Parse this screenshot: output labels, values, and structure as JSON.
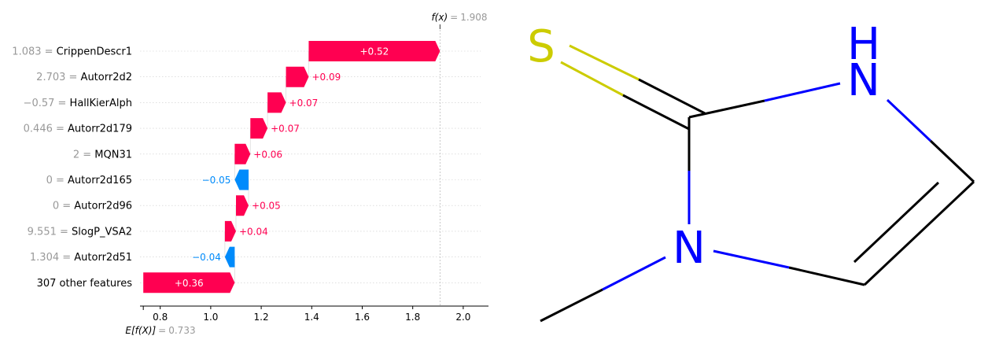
{
  "chart_data": {
    "type": "waterfall",
    "fx_label": "f(x)",
    "fx_value": "1.908",
    "base_label": "E[f(X)]",
    "base_value": "0.733",
    "xlim": [
      0.72,
      2.1
    ],
    "xticks": [
      "0.8",
      "1.0",
      "1.2",
      "1.4",
      "1.6",
      "1.8",
      "2.0"
    ],
    "colors": {
      "positive": "#ff0051",
      "negative": "#008bfb"
    },
    "features": [
      {
        "value": "1.083",
        "name": "CrippenDescr1",
        "contribution": 0.52,
        "label": "+0.52",
        "start": 1.388,
        "end": 1.908
      },
      {
        "value": "2.703",
        "name": "Autorr2d2",
        "contribution": 0.09,
        "label": "+0.09",
        "start": 1.298,
        "end": 1.388
      },
      {
        "value": "−0.57",
        "name": "HallKierAlph",
        "contribution": 0.07,
        "label": "+0.07",
        "start": 1.225,
        "end": 1.298
      },
      {
        "value": "0.446",
        "name": "Autorr2d179",
        "contribution": 0.07,
        "label": "+0.07",
        "start": 1.157,
        "end": 1.225
      },
      {
        "value": "2",
        "name": "MQN31",
        "contribution": 0.06,
        "label": "+0.06",
        "start": 1.095,
        "end": 1.157
      },
      {
        "value": "0",
        "name": "Autorr2d165",
        "contribution": -0.05,
        "label": "−0.05",
        "start": 1.15,
        "end": 1.095
      },
      {
        "value": "0",
        "name": "Autorr2d96",
        "contribution": 0.05,
        "label": "+0.05",
        "start": 1.1,
        "end": 1.15
      },
      {
        "value": "9.551",
        "name": "SlogP_VSA2",
        "contribution": 0.04,
        "label": "+0.04",
        "start": 1.056,
        "end": 1.1
      },
      {
        "value": "1.304",
        "name": "Autorr2d51",
        "contribution": -0.04,
        "label": "−0.04",
        "start": 1.095,
        "end": 1.056
      },
      {
        "value": "",
        "name": "307 other features",
        "contribution": 0.36,
        "label": "+0.36",
        "start": 0.733,
        "end": 1.095
      }
    ]
  },
  "molecule": {
    "atoms": [
      "S",
      "N",
      "H"
    ],
    "colors": {
      "S": "#cccc00",
      "N": "#0000ff",
      "bond": "#000000"
    }
  }
}
